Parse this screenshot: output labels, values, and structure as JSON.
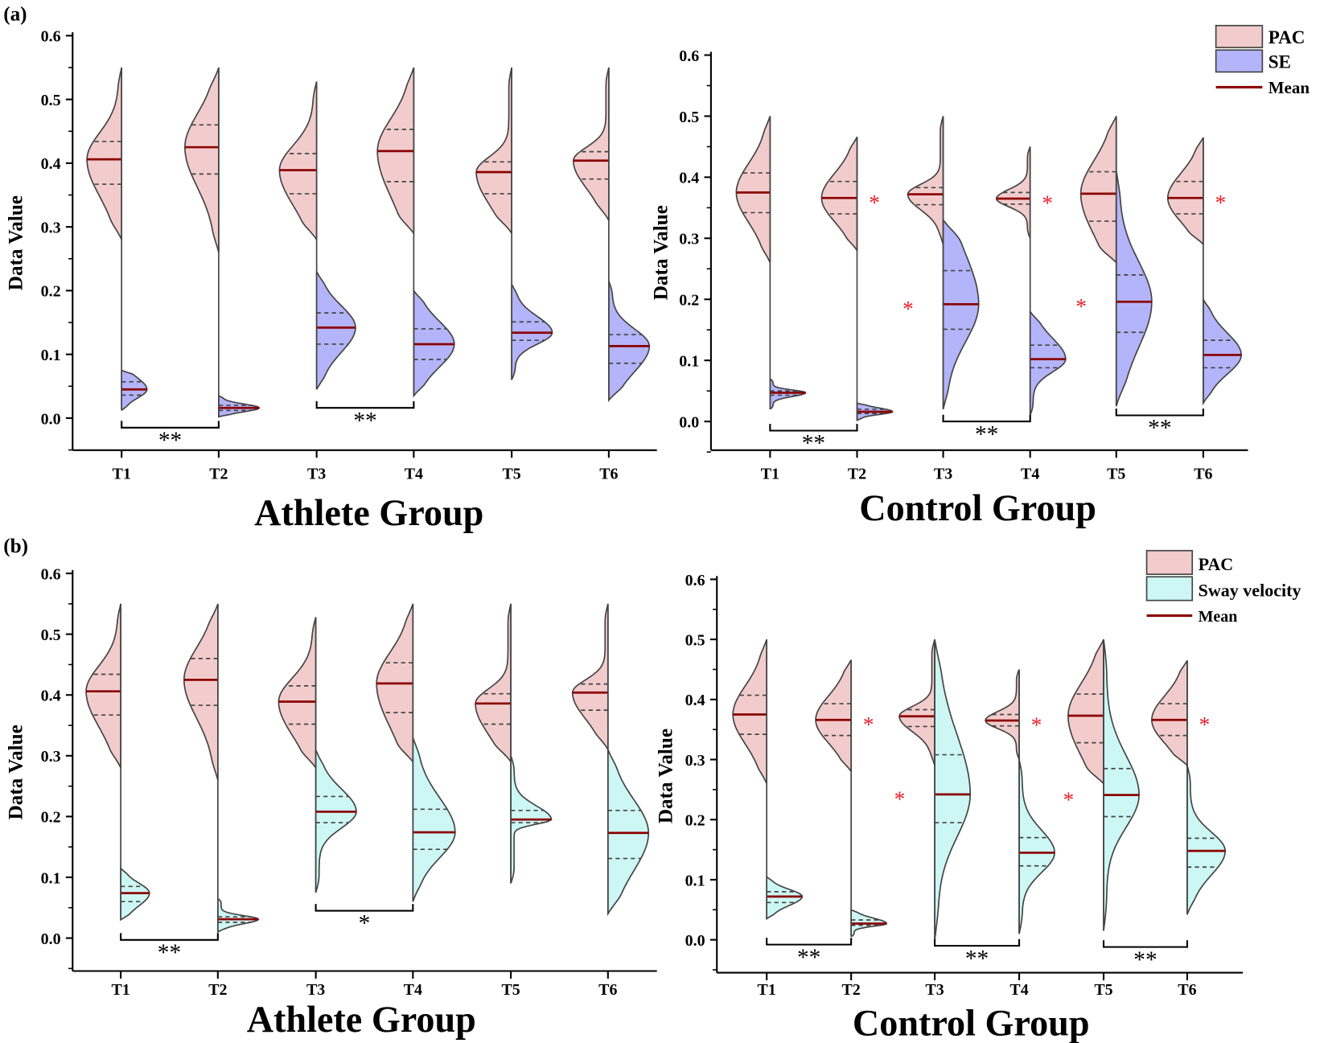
{
  "panel_labels": [
    "(a)",
    "(b)"
  ],
  "colors": {
    "PAC": "#f2cccc",
    "SE": "#b4b4fa",
    "Sway velocity": "#ccf7f5",
    "mean": "#8b0000",
    "outline": "#444444",
    "star": "#e8202a"
  },
  "chart_data": [
    {
      "type": "violin",
      "title": "Athlete Group",
      "ylabel": "Data Value",
      "ylim": [
        -0.05,
        0.6
      ],
      "yticks": [
        "0.0",
        "0.1",
        "0.2",
        "0.3",
        "0.4",
        "0.5",
        "0.6"
      ],
      "categories": [
        "T1",
        "T2",
        "T3",
        "T4",
        "T5",
        "T6"
      ],
      "series": [
        {
          "name": "PAC",
          "stats": [
            {
              "mean": 0.406,
              "q1": 0.367,
              "q3": 0.434,
              "min": 0.28,
              "max": 0.55
            },
            {
              "mean": 0.425,
              "q1": 0.383,
              "q3": 0.46,
              "min": 0.26,
              "max": 0.55
            },
            {
              "mean": 0.389,
              "q1": 0.352,
              "q3": 0.415,
              "min": 0.28,
              "max": 0.528
            },
            {
              "mean": 0.419,
              "q1": 0.371,
              "q3": 0.453,
              "min": 0.29,
              "max": 0.55
            },
            {
              "mean": 0.386,
              "q1": 0.352,
              "q3": 0.402,
              "min": 0.29,
              "max": 0.55
            },
            {
              "mean": 0.404,
              "q1": 0.375,
              "q3": 0.418,
              "min": 0.31,
              "max": 0.55
            }
          ]
        },
        {
          "name": "SE",
          "stats": [
            {
              "mean": 0.045,
              "q1": 0.036,
              "q3": 0.057,
              "min": 0.012,
              "max": 0.075
            },
            {
              "mean": 0.016,
              "q1": 0.012,
              "q3": 0.02,
              "min": 0.002,
              "max": 0.035
            },
            {
              "mean": 0.142,
              "q1": 0.116,
              "q3": 0.165,
              "min": 0.045,
              "max": 0.23
            },
            {
              "mean": 0.116,
              "q1": 0.092,
              "q3": 0.14,
              "min": 0.035,
              "max": 0.2
            },
            {
              "mean": 0.134,
              "q1": 0.122,
              "q3": 0.151,
              "min": 0.06,
              "max": 0.21
            },
            {
              "mean": 0.113,
              "q1": 0.086,
              "q3": 0.131,
              "min": 0.028,
              "max": 0.215
            }
          ]
        }
      ],
      "significance": [
        {
          "from": "T1",
          "to": "T2",
          "y": -0.015,
          "label": "**"
        },
        {
          "from": "T3",
          "to": "T4",
          "y": 0.016,
          "label": "**"
        }
      ],
      "stars": [],
      "legend": null
    },
    {
      "type": "violin",
      "title": "Control Group",
      "ylabel": "Data Value",
      "ylim": [
        -0.05,
        0.6
      ],
      "yticks": [
        "0.0",
        "0.1",
        "0.2",
        "0.3",
        "0.4",
        "0.5",
        "0.6"
      ],
      "categories": [
        "T1",
        "T2",
        "T3",
        "T4",
        "T5",
        "T6"
      ],
      "series": [
        {
          "name": "PAC",
          "stats": [
            {
              "mean": 0.375,
              "q1": 0.342,
              "q3": 0.407,
              "min": 0.26,
              "max": 0.5
            },
            {
              "mean": 0.366,
              "q1": 0.34,
              "q3": 0.393,
              "min": 0.28,
              "max": 0.466
            },
            {
              "mean": 0.372,
              "q1": 0.355,
              "q3": 0.383,
              "min": 0.29,
              "max": 0.5
            },
            {
              "mean": 0.365,
              "q1": 0.356,
              "q3": 0.375,
              "min": 0.3,
              "max": 0.45
            },
            {
              "mean": 0.373,
              "q1": 0.328,
              "q3": 0.409,
              "min": 0.26,
              "max": 0.5
            },
            {
              "mean": 0.366,
              "q1": 0.34,
              "q3": 0.393,
              "min": 0.29,
              "max": 0.465
            }
          ]
        },
        {
          "name": "SE",
          "stats": [
            {
              "mean": 0.047,
              "q1": 0.043,
              "q3": 0.05,
              "min": 0.02,
              "max": 0.07
            },
            {
              "mean": 0.016,
              "q1": 0.013,
              "q3": 0.02,
              "min": 0.002,
              "max": 0.03
            },
            {
              "mean": 0.192,
              "q1": 0.151,
              "q3": 0.247,
              "min": 0.02,
              "max": 0.33
            },
            {
              "mean": 0.102,
              "q1": 0.088,
              "q3": 0.125,
              "min": 0.01,
              "max": 0.18
            },
            {
              "mean": 0.196,
              "q1": 0.146,
              "q3": 0.24,
              "min": 0.025,
              "max": 0.41
            },
            {
              "mean": 0.109,
              "q1": 0.088,
              "q3": 0.133,
              "min": 0.03,
              "max": 0.2
            }
          ]
        }
      ],
      "significance": [
        {
          "from": "T1",
          "to": "T2",
          "y": -0.015,
          "label": "**"
        },
        {
          "from": "T3",
          "to": "T4",
          "y": 0.0,
          "label": "**"
        },
        {
          "from": "T5",
          "to": "T6",
          "y": 0.01,
          "label": "**"
        }
      ],
      "stars": [
        {
          "category": "T2",
          "series": "PAC",
          "side": "right",
          "label": "*"
        },
        {
          "category": "T4",
          "series": "PAC",
          "side": "right",
          "label": "*"
        },
        {
          "category": "T6",
          "series": "PAC",
          "side": "right",
          "label": "*"
        },
        {
          "category": "T3",
          "series": "SE",
          "side": "left",
          "label": "*"
        },
        {
          "category": "T5",
          "series": "SE",
          "side": "left",
          "label": "*"
        }
      ],
      "legend": [
        "PAC",
        "SE",
        "Mean"
      ]
    },
    {
      "type": "violin",
      "title": "Athlete Group",
      "ylabel": "Data Value",
      "ylim": [
        -0.05,
        0.6
      ],
      "yticks": [
        "0.0",
        "0.1",
        "0.2",
        "0.3",
        "0.4",
        "0.5",
        "0.6"
      ],
      "categories": [
        "T1",
        "T2",
        "T3",
        "T4",
        "T5",
        "T6"
      ],
      "series": [
        {
          "name": "PAC",
          "stats": [
            {
              "mean": 0.406,
              "q1": 0.367,
              "q3": 0.434,
              "min": 0.28,
              "max": 0.55
            },
            {
              "mean": 0.425,
              "q1": 0.383,
              "q3": 0.46,
              "min": 0.26,
              "max": 0.55
            },
            {
              "mean": 0.389,
              "q1": 0.352,
              "q3": 0.415,
              "min": 0.28,
              "max": 0.528
            },
            {
              "mean": 0.419,
              "q1": 0.371,
              "q3": 0.453,
              "min": 0.29,
              "max": 0.55
            },
            {
              "mean": 0.386,
              "q1": 0.352,
              "q3": 0.402,
              "min": 0.29,
              "max": 0.55
            },
            {
              "mean": 0.404,
              "q1": 0.375,
              "q3": 0.418,
              "min": 0.31,
              "max": 0.55
            }
          ]
        },
        {
          "name": "Sway velocity",
          "stats": [
            {
              "mean": 0.074,
              "q1": 0.06,
              "q3": 0.085,
              "min": 0.03,
              "max": 0.115
            },
            {
              "mean": 0.031,
              "q1": 0.026,
              "q3": 0.035,
              "min": 0.01,
              "max": 0.065
            },
            {
              "mean": 0.208,
              "q1": 0.19,
              "q3": 0.233,
              "min": 0.075,
              "max": 0.31
            },
            {
              "mean": 0.174,
              "q1": 0.146,
              "q3": 0.212,
              "min": 0.06,
              "max": 0.33
            },
            {
              "mean": 0.195,
              "q1": 0.19,
              "q3": 0.21,
              "min": 0.09,
              "max": 0.3
            },
            {
              "mean": 0.173,
              "q1": 0.131,
              "q3": 0.21,
              "min": 0.04,
              "max": 0.31
            }
          ]
        }
      ],
      "significance": [
        {
          "from": "T1",
          "to": "T2",
          "y": -0.003,
          "label": "**"
        },
        {
          "from": "T3",
          "to": "T4",
          "y": 0.045,
          "label": "*"
        }
      ],
      "stars": [],
      "legend": null
    },
    {
      "type": "violin",
      "title": "Control Group",
      "ylabel": "Data Value",
      "ylim": [
        -0.05,
        0.6
      ],
      "yticks": [
        "0.0",
        "0.1",
        "0.2",
        "0.3",
        "0.4",
        "0.5",
        "0.6"
      ],
      "categories": [
        "T1",
        "T2",
        "T3",
        "T4",
        "T5",
        "T6"
      ],
      "series": [
        {
          "name": "PAC",
          "stats": [
            {
              "mean": 0.375,
              "q1": 0.342,
              "q3": 0.407,
              "min": 0.26,
              "max": 0.5
            },
            {
              "mean": 0.366,
              "q1": 0.34,
              "q3": 0.393,
              "min": 0.28,
              "max": 0.466
            },
            {
              "mean": 0.372,
              "q1": 0.355,
              "q3": 0.383,
              "min": 0.29,
              "max": 0.5
            },
            {
              "mean": 0.365,
              "q1": 0.356,
              "q3": 0.375,
              "min": 0.3,
              "max": 0.45
            },
            {
              "mean": 0.373,
              "q1": 0.328,
              "q3": 0.409,
              "min": 0.26,
              "max": 0.5
            },
            {
              "mean": 0.366,
              "q1": 0.34,
              "q3": 0.393,
              "min": 0.29,
              "max": 0.465
            }
          ]
        },
        {
          "name": "Sway velocity",
          "stats": [
            {
              "mean": 0.072,
              "q1": 0.062,
              "q3": 0.08,
              "min": 0.035,
              "max": 0.105
            },
            {
              "mean": 0.027,
              "q1": 0.024,
              "q3": 0.033,
              "min": 0.005,
              "max": 0.05
            },
            {
              "mean": 0.242,
              "q1": 0.195,
              "q3": 0.308,
              "min": 0.0,
              "max": 0.5
            },
            {
              "mean": 0.145,
              "q1": 0.123,
              "q3": 0.17,
              "min": 0.01,
              "max": 0.3
            },
            {
              "mean": 0.241,
              "q1": 0.205,
              "q3": 0.285,
              "min": 0.015,
              "max": 0.5
            },
            {
              "mean": 0.148,
              "q1": 0.121,
              "q3": 0.169,
              "min": 0.042,
              "max": 0.29
            }
          ]
        }
      ],
      "significance": [
        {
          "from": "T1",
          "to": "T2",
          "y": -0.008,
          "label": "**"
        },
        {
          "from": "T3",
          "to": "T4",
          "y": -0.01,
          "label": "**"
        },
        {
          "from": "T5",
          "to": "T6",
          "y": -0.012,
          "label": "**"
        }
      ],
      "stars": [
        {
          "category": "T2",
          "series": "PAC",
          "side": "right",
          "label": "*"
        },
        {
          "category": "T4",
          "series": "PAC",
          "side": "right",
          "label": "*"
        },
        {
          "category": "T6",
          "series": "PAC",
          "side": "right",
          "label": "*"
        },
        {
          "category": "T3",
          "series": "Sway velocity",
          "side": "left",
          "label": "*"
        },
        {
          "category": "T5",
          "series": "Sway velocity",
          "side": "left",
          "label": "*"
        }
      ],
      "legend": [
        "PAC",
        "Sway velocity",
        "Mean"
      ]
    }
  ]
}
